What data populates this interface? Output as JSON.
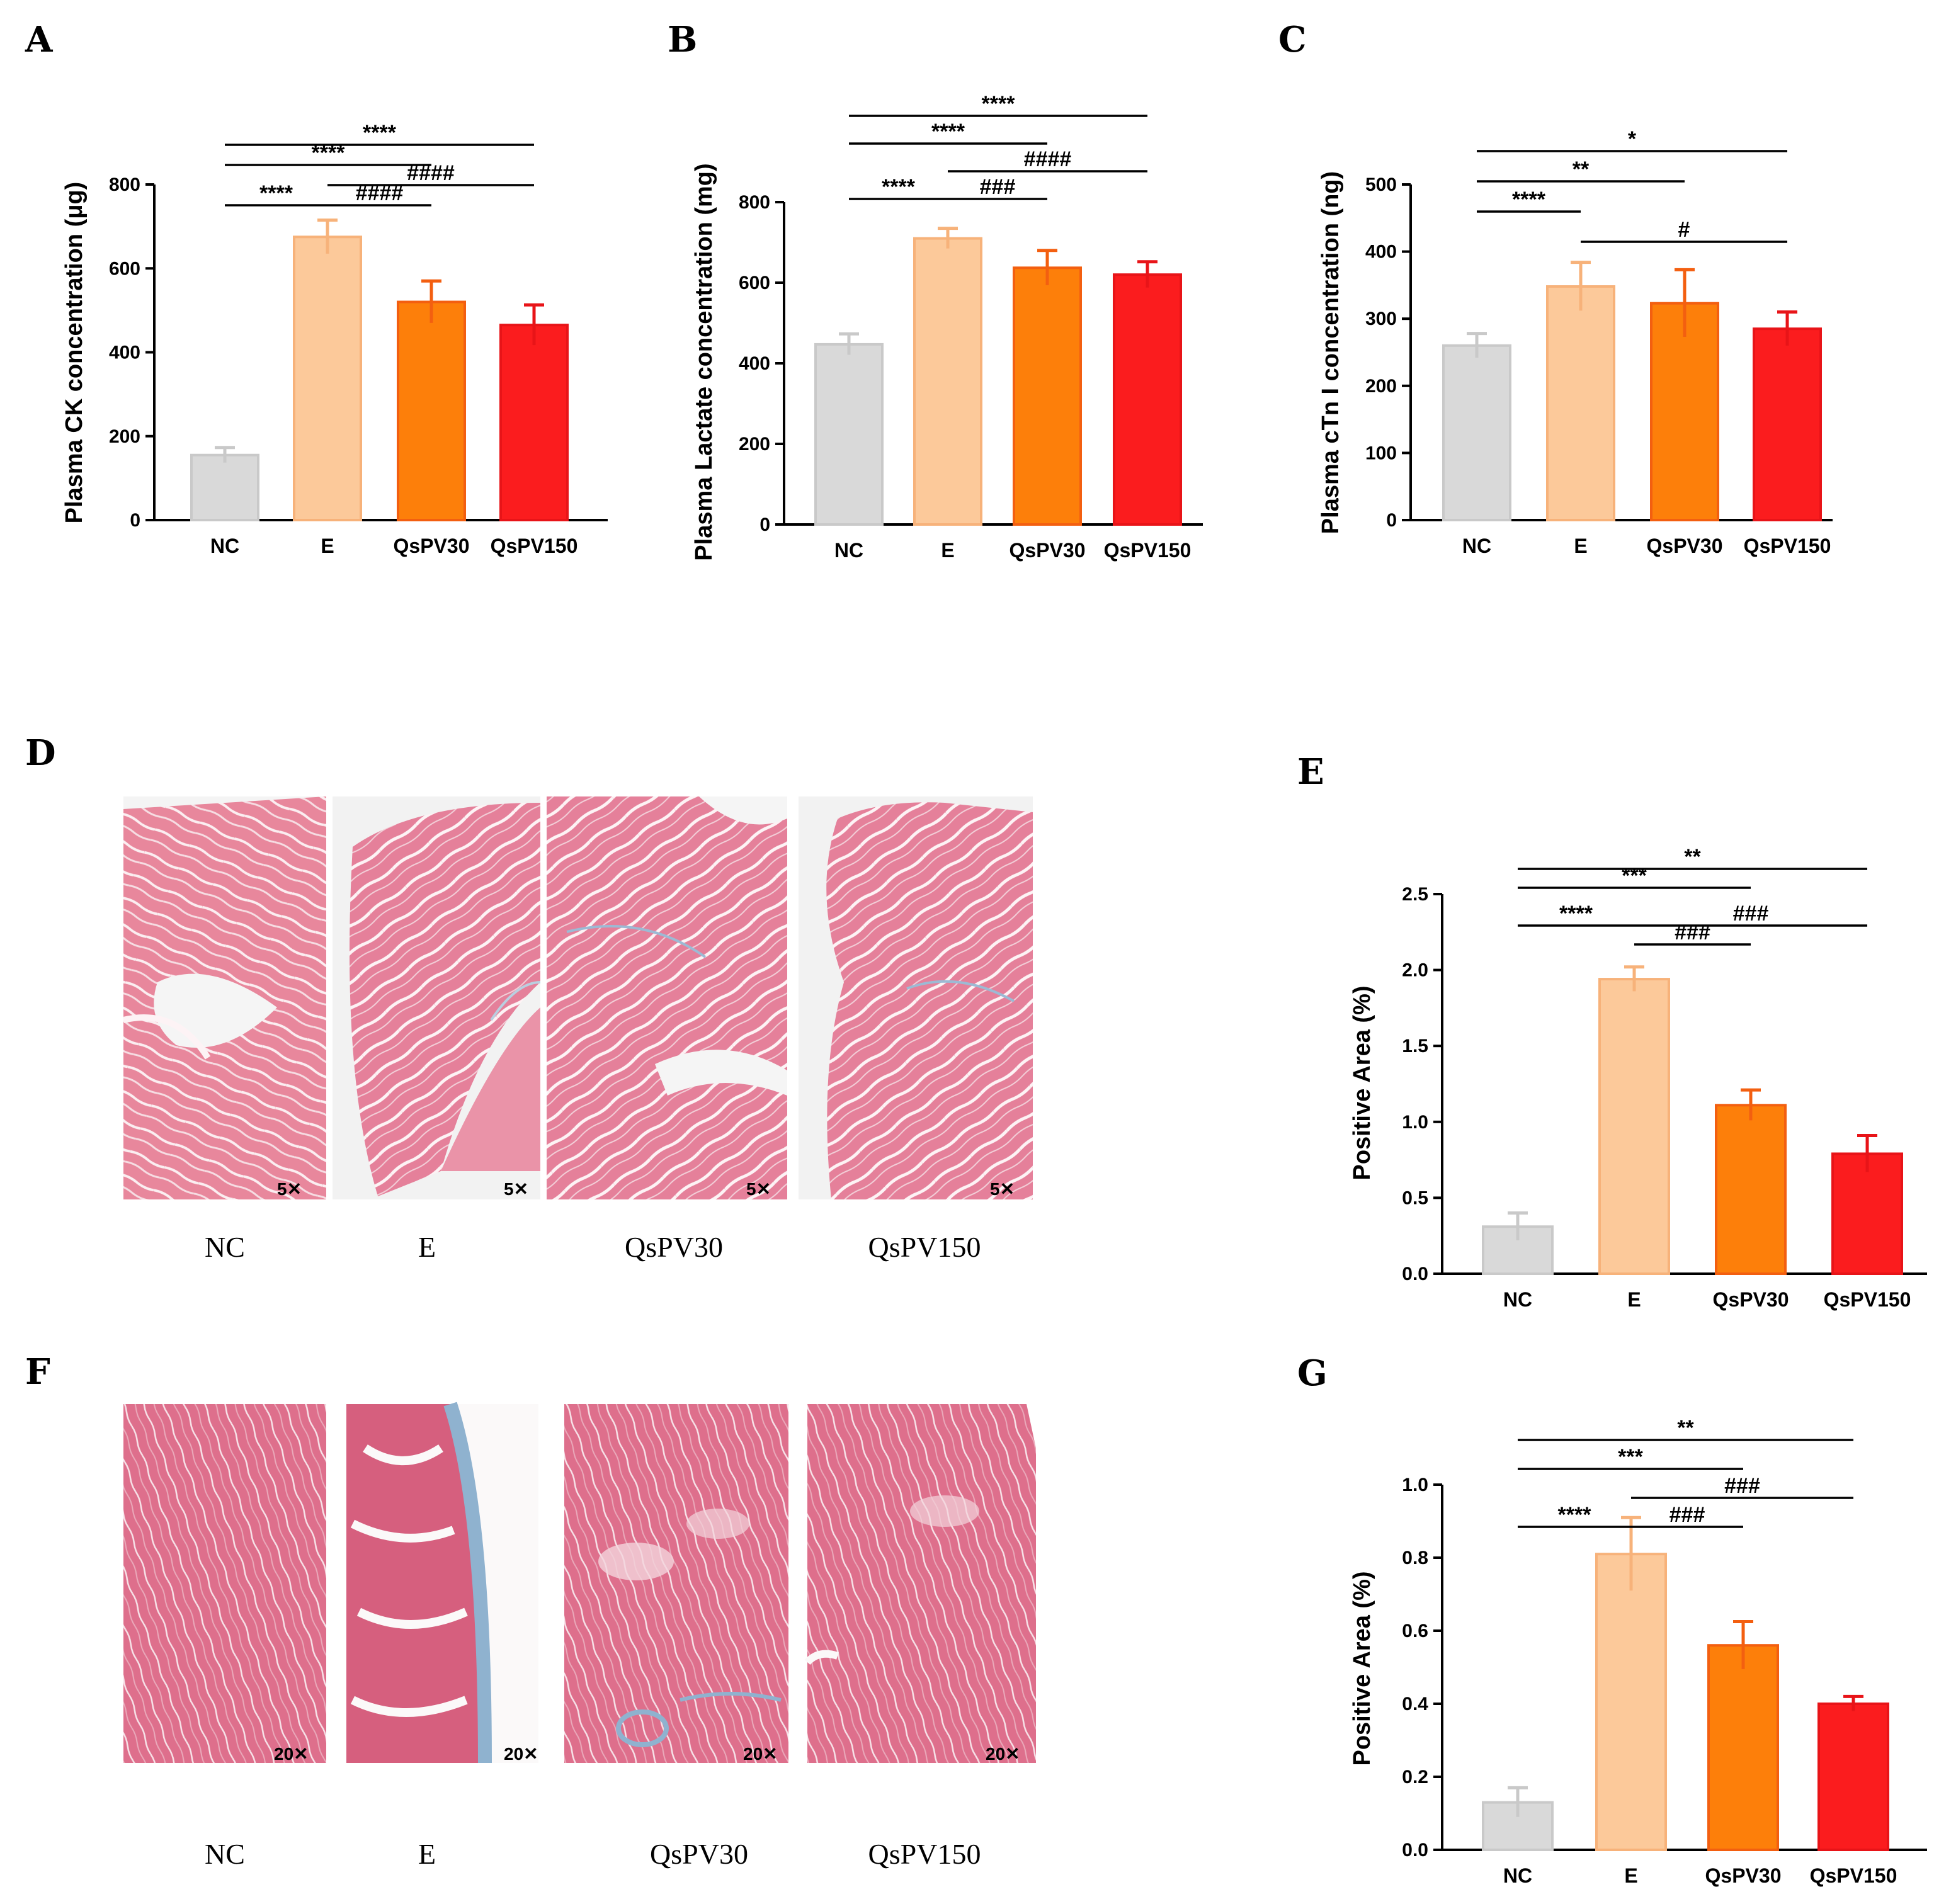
{
  "colors": {
    "NC": "#d9d9d9",
    "E": "#fcc99a",
    "QsPV30": "#fd7f0a",
    "QsPV150": "#fb1c1e",
    "err_NC": "#c9c9c9",
    "err_E": "#f7b27a",
    "err_QsPV30": "#f35f10",
    "err_QsPV150": "#e81418",
    "tissue": "#e8879c",
    "tissue_dark": "#d86a86",
    "fibrosis": "#8fb2cf"
  },
  "chart_data": [
    {
      "panel": "A",
      "type": "bar",
      "categories": [
        "NC",
        "E",
        "QsPV30",
        "QsPV150"
      ],
      "values": [
        155,
        675,
        520,
        465
      ],
      "errors": [
        18,
        40,
        50,
        48
      ],
      "ylabel": "Plasma  CK concentration (μg)",
      "ylim": [
        0,
        800
      ],
      "yticks": [
        0,
        200,
        400,
        600,
        800
      ],
      "comparisons": [
        {
          "from": 0,
          "to": 1,
          "label": "****",
          "level": 1
        },
        {
          "from": 1,
          "to": 2,
          "label": "####",
          "level": 1
        },
        {
          "from": 0,
          "to": 2,
          "label": "****",
          "level": 3
        },
        {
          "from": 1,
          "to": 3,
          "label": "####",
          "level": 2
        },
        {
          "from": 0,
          "to": 3,
          "label": "****",
          "level": 4
        }
      ]
    },
    {
      "panel": "B",
      "type": "bar",
      "categories": [
        "NC",
        "E",
        "QsPV30",
        "QsPV150"
      ],
      "values": [
        447,
        710,
        637,
        620
      ],
      "errors": [
        26,
        25,
        43,
        32
      ],
      "ylabel": "Plasma  Lactate concentration (mg)",
      "ylim": [
        0,
        800
      ],
      "yticks": [
        0,
        200,
        400,
        600,
        800
      ],
      "comparisons": [
        {
          "from": 0,
          "to": 1,
          "label": "****",
          "level": 1
        },
        {
          "from": 1,
          "to": 2,
          "label": "###",
          "level": 1
        },
        {
          "from": 0,
          "to": 2,
          "label": "****",
          "level": 3
        },
        {
          "from": 1,
          "to": 3,
          "label": "####",
          "level": 2
        },
        {
          "from": 0,
          "to": 3,
          "label": "****",
          "level": 4
        }
      ]
    },
    {
      "panel": "C",
      "type": "bar",
      "categories": [
        "NC",
        "E",
        "QsPV30",
        "QsPV150"
      ],
      "values": [
        260,
        348,
        323,
        285
      ],
      "errors": [
        18,
        36,
        50,
        25
      ],
      "ylabel": "Plasma cTn I  concentration (ng)",
      "ylim": [
        0,
        500
      ],
      "yticks": [
        0,
        100,
        200,
        300,
        400,
        500
      ],
      "comparisons": [
        {
          "from": 1,
          "to": 3,
          "label": "#",
          "level": 1
        },
        {
          "from": 0,
          "to": 1,
          "label": "****",
          "level": 2
        },
        {
          "from": 0,
          "to": 2,
          "label": "**",
          "level": 3
        },
        {
          "from": 0,
          "to": 3,
          "label": "*",
          "level": 4
        }
      ]
    },
    {
      "panel": "E",
      "type": "bar",
      "categories": [
        "NC",
        "E",
        "QsPV30",
        "QsPV150"
      ],
      "values": [
        0.31,
        1.94,
        1.11,
        0.79
      ],
      "errors": [
        0.09,
        0.08,
        0.1,
        0.12
      ],
      "ylabel": "Positive Area (%)",
      "ylim": [
        0,
        2.5
      ],
      "yticks": [
        0.0,
        0.5,
        1.0,
        1.5,
        2.0,
        2.5
      ],
      "tick_labels": [
        "0.0",
        "0.5",
        "1.0",
        "1.5",
        "2.0",
        "2.5"
      ],
      "comparisons": [
        {
          "from": 1,
          "to": 2,
          "label": "###",
          "level": 1
        },
        {
          "from": 0,
          "to": 1,
          "label": "****",
          "level": 2
        },
        {
          "from": 1,
          "to": 3,
          "label": "###",
          "level": 2
        },
        {
          "from": 0,
          "to": 2,
          "label": "***",
          "level": 4
        },
        {
          "from": 0,
          "to": 3,
          "label": "**",
          "level": 5
        }
      ]
    },
    {
      "panel": "G",
      "type": "bar",
      "categories": [
        "NC",
        "E",
        "QsPV30",
        "QsPV150"
      ],
      "values": [
        0.13,
        0.81,
        0.56,
        0.4
      ],
      "errors": [
        0.04,
        0.1,
        0.065,
        0.02
      ],
      "ylabel": "Positive Area (%)",
      "ylim": [
        0,
        1.0
      ],
      "yticks": [
        0.0,
        0.2,
        0.4,
        0.6,
        0.8,
        1.0
      ],
      "tick_labels": [
        "0.0",
        "0.2",
        "0.4",
        "0.6",
        "0.8",
        "1.0"
      ],
      "comparisons": [
        {
          "from": 0,
          "to": 1,
          "label": "****",
          "level": 1
        },
        {
          "from": 1,
          "to": 2,
          "label": "###",
          "level": 1
        },
        {
          "from": 1,
          "to": 3,
          "label": "###",
          "level": 2
        },
        {
          "from": 0,
          "to": 2,
          "label": "***",
          "level": 3
        },
        {
          "from": 0,
          "to": 3,
          "label": "**",
          "level": 4
        }
      ]
    }
  ],
  "micrographs": {
    "D": {
      "letter": "D",
      "captions": [
        "NC",
        "E",
        "QsPV30",
        "QsPV150"
      ],
      "magnification": "5✕"
    },
    "F": {
      "letter": "F",
      "captions": [
        "NC",
        "E",
        "QsPV30",
        "QsPV150"
      ],
      "magnification": "20✕"
    }
  }
}
